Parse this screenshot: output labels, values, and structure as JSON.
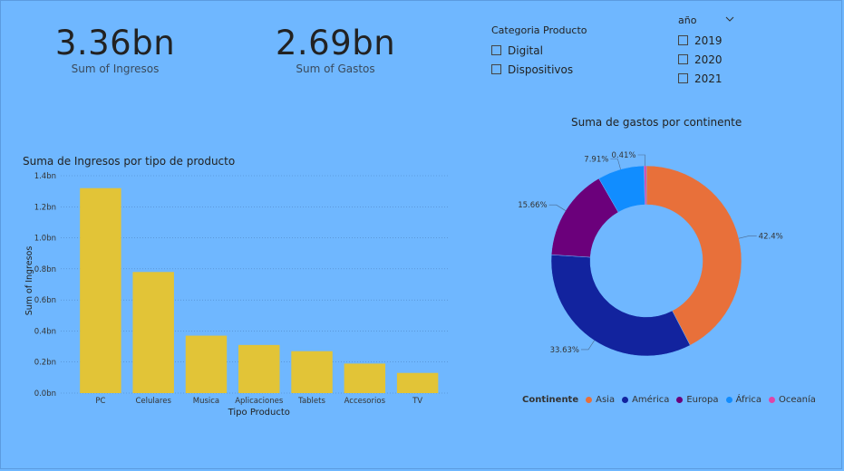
{
  "kpis": [
    {
      "value": "3.36bn",
      "label": "Sum of Ingresos"
    },
    {
      "value": "2.69bn",
      "label": "Sum of Gastos"
    }
  ],
  "slicer_categoria": {
    "title": "Categoria Producto",
    "options": [
      "Digital",
      "Dispositivos"
    ]
  },
  "slicer_anio": {
    "title": "año",
    "options": [
      "2019",
      "2020",
      "2021"
    ]
  },
  "icons": {
    "dropdown": "chevron-down-icon",
    "checkbox": "checkbox-icon"
  },
  "chart_data": [
    {
      "type": "bar",
      "title": "Suma de Ingresos por tipo de producto",
      "xlabel": "Tipo Producto",
      "ylabel": "Sum of Ingresos",
      "categories": [
        "PC",
        "Celulares",
        "Musica",
        "Aplicaciones",
        "Tablets",
        "Accesorios",
        "TV"
      ],
      "values": [
        1.32,
        0.78,
        0.37,
        0.31,
        0.27,
        0.19,
        0.13
      ],
      "ylim": [
        0,
        1.4
      ],
      "yticks": [
        "0.0bn",
        "0.2bn",
        "0.4bn",
        "0.6bn",
        "0.8bn",
        "1.0bn",
        "1.2bn",
        "1.4bn"
      ],
      "color": "#e2c437",
      "grid": true
    },
    {
      "type": "pie",
      "title": "Suma de gastos por continente",
      "legend_title": "Continente",
      "labels": [
        "Asia",
        "América",
        "Europa",
        "África",
        "Oceanía"
      ],
      "values": [
        42.4,
        33.63,
        15.66,
        7.91,
        0.41
      ],
      "value_labels": [
        "42.4%",
        "33.63%",
        "15.66%",
        "7.91%",
        "0.41%"
      ],
      "colors": [
        "#e8703a",
        "#12239e",
        "#6b007b",
        "#118dff",
        "#e044a7"
      ],
      "donut": true,
      "legend_position": "bottom-left"
    }
  ]
}
